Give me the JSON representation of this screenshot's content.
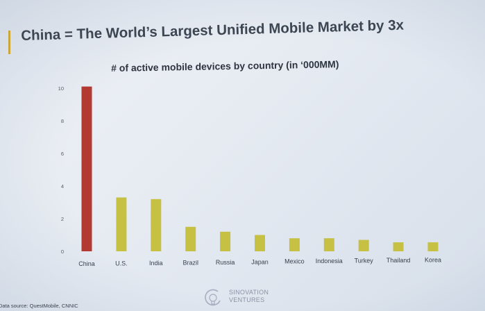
{
  "slide": {
    "title": "China = The World’s Largest Unified Mobile Market by 3x"
  },
  "chart_data": {
    "type": "bar",
    "title": "# of active mobile devices by country (in ‘000MM)",
    "categories": [
      "China",
      "U.S.",
      "India",
      "Brazil",
      "Russia",
      "Japan",
      "Mexico",
      "Indonesia",
      "Turkey",
      "Thailand",
      "Korea"
    ],
    "values": [
      10.1,
      3.3,
      3.2,
      1.5,
      1.2,
      1.0,
      0.8,
      0.8,
      0.7,
      0.55,
      0.55
    ],
    "colors": [
      "#b23a33",
      "#c6c143",
      "#c6c143",
      "#c6c143",
      "#c6c143",
      "#c6c143",
      "#c6c143",
      "#c6c143",
      "#c6c143",
      "#c6c143",
      "#c6c143"
    ],
    "yticks": [
      0,
      2,
      4,
      6,
      8,
      10
    ],
    "ylim": [
      0,
      10
    ],
    "xlabel": "",
    "ylabel": "",
    "grid": false,
    "legend": "none"
  },
  "footer": {
    "source": "Data source: QuestMobile, CNNIC"
  },
  "logo": {
    "line1": "SINOVATION",
    "line2": "VENTURES",
    "icon": "lightbulb-icon"
  }
}
